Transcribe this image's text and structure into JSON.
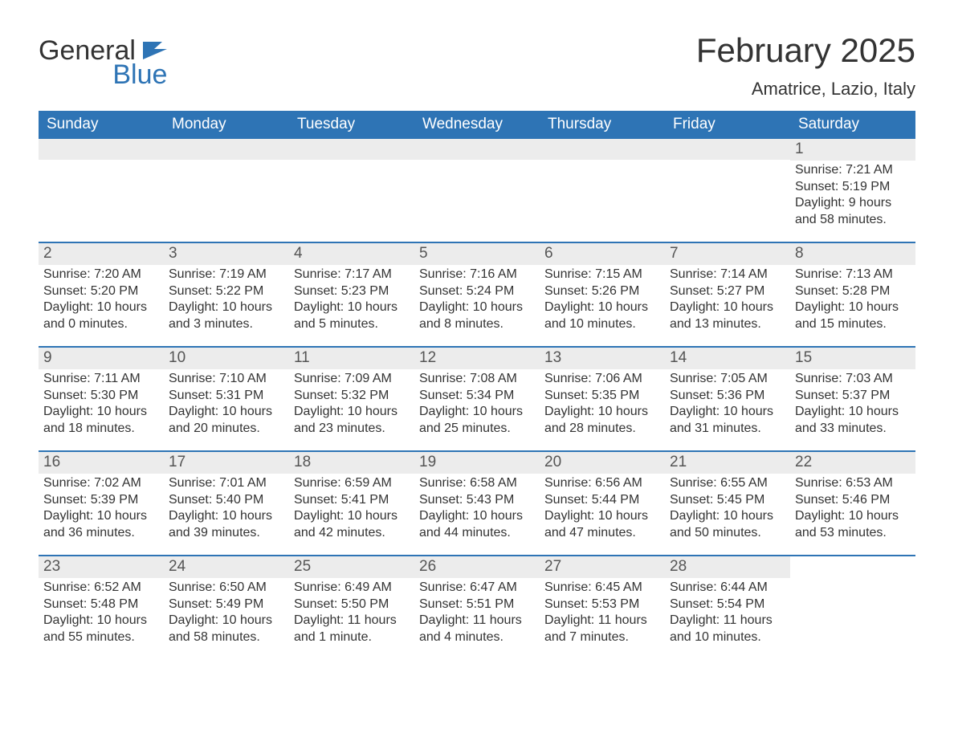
{
  "brand": {
    "word1": "General",
    "word2": "Blue"
  },
  "colors": {
    "brand_blue": "#2e74b5",
    "band_gray": "#ececec",
    "text": "#333333",
    "bg": "#ffffff"
  },
  "title": "February 2025",
  "location": "Amatrice, Lazio, Italy",
  "weekdays": [
    "Sunday",
    "Monday",
    "Tuesday",
    "Wednesday",
    "Thursday",
    "Friday",
    "Saturday"
  ],
  "days": [
    {
      "n": 1,
      "dow": 6,
      "sunrise": "7:21 AM",
      "sunset": "5:19 PM",
      "daylight": "9 hours and 58 minutes."
    },
    {
      "n": 2,
      "dow": 0,
      "sunrise": "7:20 AM",
      "sunset": "5:20 PM",
      "daylight": "10 hours and 0 minutes."
    },
    {
      "n": 3,
      "dow": 1,
      "sunrise": "7:19 AM",
      "sunset": "5:22 PM",
      "daylight": "10 hours and 3 minutes."
    },
    {
      "n": 4,
      "dow": 2,
      "sunrise": "7:17 AM",
      "sunset": "5:23 PM",
      "daylight": "10 hours and 5 minutes."
    },
    {
      "n": 5,
      "dow": 3,
      "sunrise": "7:16 AM",
      "sunset": "5:24 PM",
      "daylight": "10 hours and 8 minutes."
    },
    {
      "n": 6,
      "dow": 4,
      "sunrise": "7:15 AM",
      "sunset": "5:26 PM",
      "daylight": "10 hours and 10 minutes."
    },
    {
      "n": 7,
      "dow": 5,
      "sunrise": "7:14 AM",
      "sunset": "5:27 PM",
      "daylight": "10 hours and 13 minutes."
    },
    {
      "n": 8,
      "dow": 6,
      "sunrise": "7:13 AM",
      "sunset": "5:28 PM",
      "daylight": "10 hours and 15 minutes."
    },
    {
      "n": 9,
      "dow": 0,
      "sunrise": "7:11 AM",
      "sunset": "5:30 PM",
      "daylight": "10 hours and 18 minutes."
    },
    {
      "n": 10,
      "dow": 1,
      "sunrise": "7:10 AM",
      "sunset": "5:31 PM",
      "daylight": "10 hours and 20 minutes."
    },
    {
      "n": 11,
      "dow": 2,
      "sunrise": "7:09 AM",
      "sunset": "5:32 PM",
      "daylight": "10 hours and 23 minutes."
    },
    {
      "n": 12,
      "dow": 3,
      "sunrise": "7:08 AM",
      "sunset": "5:34 PM",
      "daylight": "10 hours and 25 minutes."
    },
    {
      "n": 13,
      "dow": 4,
      "sunrise": "7:06 AM",
      "sunset": "5:35 PM",
      "daylight": "10 hours and 28 minutes."
    },
    {
      "n": 14,
      "dow": 5,
      "sunrise": "7:05 AM",
      "sunset": "5:36 PM",
      "daylight": "10 hours and 31 minutes."
    },
    {
      "n": 15,
      "dow": 6,
      "sunrise": "7:03 AM",
      "sunset": "5:37 PM",
      "daylight": "10 hours and 33 minutes."
    },
    {
      "n": 16,
      "dow": 0,
      "sunrise": "7:02 AM",
      "sunset": "5:39 PM",
      "daylight": "10 hours and 36 minutes."
    },
    {
      "n": 17,
      "dow": 1,
      "sunrise": "7:01 AM",
      "sunset": "5:40 PM",
      "daylight": "10 hours and 39 minutes."
    },
    {
      "n": 18,
      "dow": 2,
      "sunrise": "6:59 AM",
      "sunset": "5:41 PM",
      "daylight": "10 hours and 42 minutes."
    },
    {
      "n": 19,
      "dow": 3,
      "sunrise": "6:58 AM",
      "sunset": "5:43 PM",
      "daylight": "10 hours and 44 minutes."
    },
    {
      "n": 20,
      "dow": 4,
      "sunrise": "6:56 AM",
      "sunset": "5:44 PM",
      "daylight": "10 hours and 47 minutes."
    },
    {
      "n": 21,
      "dow": 5,
      "sunrise": "6:55 AM",
      "sunset": "5:45 PM",
      "daylight": "10 hours and 50 minutes."
    },
    {
      "n": 22,
      "dow": 6,
      "sunrise": "6:53 AM",
      "sunset": "5:46 PM",
      "daylight": "10 hours and 53 minutes."
    },
    {
      "n": 23,
      "dow": 0,
      "sunrise": "6:52 AM",
      "sunset": "5:48 PM",
      "daylight": "10 hours and 55 minutes."
    },
    {
      "n": 24,
      "dow": 1,
      "sunrise": "6:50 AM",
      "sunset": "5:49 PM",
      "daylight": "10 hours and 58 minutes."
    },
    {
      "n": 25,
      "dow": 2,
      "sunrise": "6:49 AM",
      "sunset": "5:50 PM",
      "daylight": "11 hours and 1 minute."
    },
    {
      "n": 26,
      "dow": 3,
      "sunrise": "6:47 AM",
      "sunset": "5:51 PM",
      "daylight": "11 hours and 4 minutes."
    },
    {
      "n": 27,
      "dow": 4,
      "sunrise": "6:45 AM",
      "sunset": "5:53 PM",
      "daylight": "11 hours and 7 minutes."
    },
    {
      "n": 28,
      "dow": 5,
      "sunrise": "6:44 AM",
      "sunset": "5:54 PM",
      "daylight": "11 hours and 10 minutes."
    }
  ],
  "labels": {
    "sunrise": "Sunrise:",
    "sunset": "Sunset:",
    "daylight": "Daylight:"
  },
  "layout": {
    "first_dow": 6,
    "days_in_month": 28,
    "weeks": 5
  }
}
